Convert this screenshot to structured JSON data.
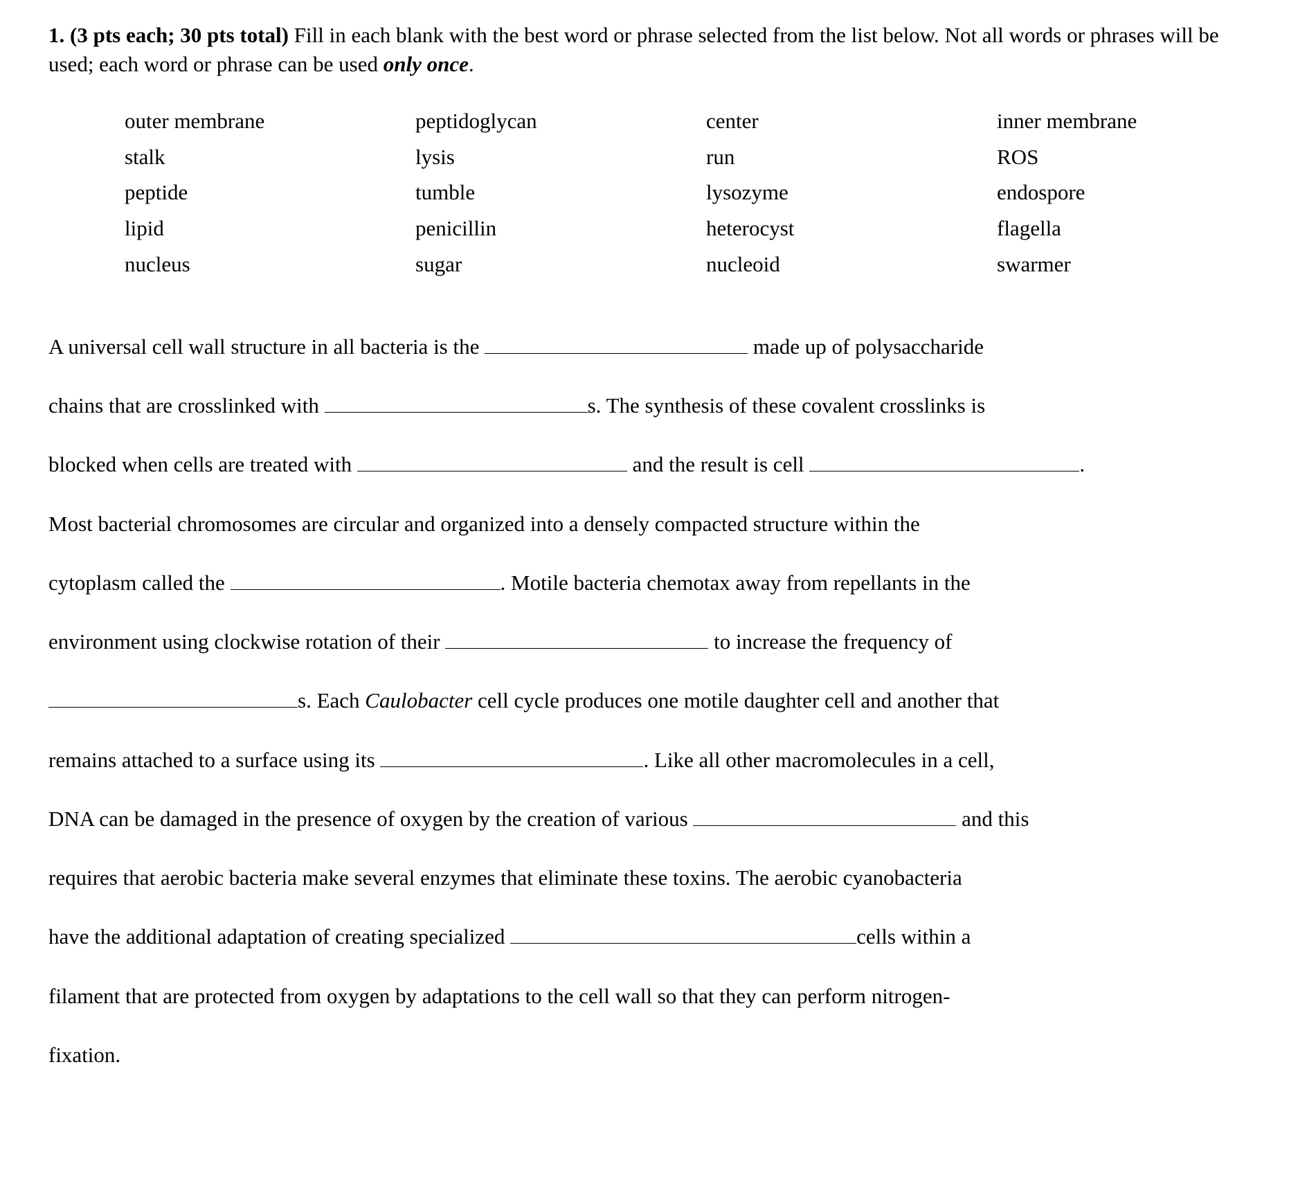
{
  "instructions": {
    "prefix_bold": "1. (3 pts each; 30 pts total) ",
    "body_before_emph": "Fill in each blank with the best word or phrase selected from the list below. Not all words or phrases will be used; each word or phrase can be used ",
    "emph": "only once",
    "body_after_emph": "."
  },
  "wordbank": {
    "col1": [
      "outer membrane",
      "stalk",
      "peptide",
      "lipid",
      "nucleus"
    ],
    "col2": [
      "peptidoglycan",
      "lysis",
      "tumble",
      "penicillin",
      "sugar"
    ],
    "col3": [
      "center",
      "run",
      "lysozyme",
      "heterocyst",
      "nucleoid"
    ],
    "col4": [
      "inner membrane",
      "ROS",
      "endospore",
      "flagella",
      "swarmer"
    ]
  },
  "passage": {
    "p01": "A universal cell wall structure in all bacteria is the ",
    "p02": " made up of polysaccharide",
    "p03": "chains that are crosslinked with ",
    "p04": "s. The synthesis of these covalent crosslinks is",
    "p05": "blocked when cells are treated with ",
    "p06": " and the result is cell ",
    "p07": ".",
    "p08": "Most bacterial chromosomes are circular and organized into a densely compacted structure within the",
    "p09": "cytoplasm called the ",
    "p10": ". Motile bacteria chemotax away from repellants in the",
    "p11": "environment using clockwise rotation of their ",
    "p12": " to increase the frequency of",
    "p13": "s. Each ",
    "genus": "Caulobacter",
    "p14": " cell cycle produces one motile daughter cell and another that",
    "p15": "remains attached to a surface using its ",
    "p16": ". Like all other macromolecules in a cell,",
    "p17": "DNA can be damaged in the presence of oxygen by the creation of various ",
    "p18": " and this",
    "p19": "requires that aerobic bacteria make several enzymes that eliminate these toxins. The aerobic cyanobacteria",
    "p20": "have the additional adaptation of creating specialized ",
    "p21": "cells within a",
    "p22": "filament that are protected from oxygen by adaptations to the cell wall so that they can perform nitrogen-",
    "p23": "fixation."
  }
}
